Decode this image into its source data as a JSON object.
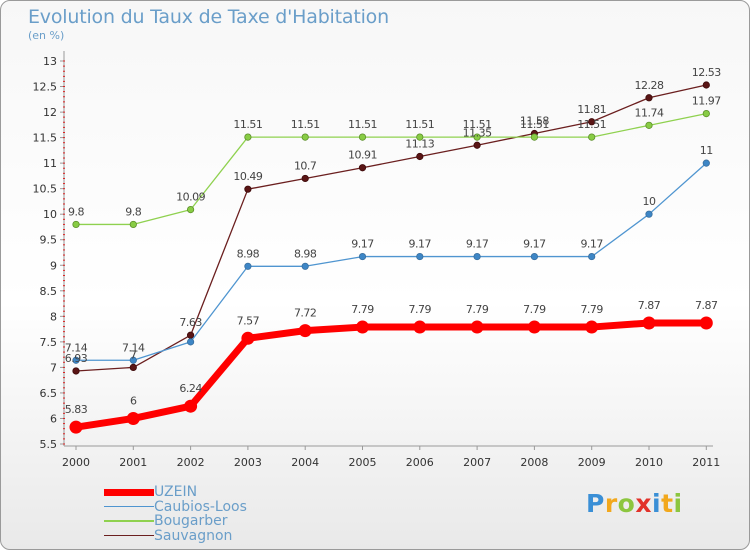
{
  "chart_data": {
    "type": "line",
    "title": "Evolution du Taux de Taxe d'Habitation",
    "ylabel": "(en %)",
    "xlabel": "",
    "ylim": [
      5.5,
      13
    ],
    "yticks": [
      "5.5",
      "6",
      "6.5",
      "7",
      "7.5",
      "8",
      "8.5",
      "9",
      "9.5",
      "10",
      "10.5",
      "11",
      "11.5",
      "12",
      "12.5",
      "13"
    ],
    "x": [
      "2000",
      "2001",
      "2002",
      "2003",
      "2004",
      "2005",
      "2006",
      "2007",
      "2008",
      "2009",
      "2010",
      "2011"
    ],
    "series": [
      {
        "name": "UZEIN",
        "color": "#ff0000",
        "values": [
          5.83,
          6,
          6.24,
          7.57,
          7.72,
          7.79,
          7.79,
          7.79,
          7.79,
          7.79,
          7.87,
          7.87
        ]
      },
      {
        "name": "Caubios-Loos",
        "color": "#4f95d0",
        "values": [
          7.14,
          7.14,
          7.5,
          8.98,
          8.98,
          9.17,
          9.17,
          9.17,
          9.17,
          9.17,
          10,
          11
        ]
      },
      {
        "name": "Bougarber",
        "color": "#8fd14f",
        "values": [
          9.8,
          9.8,
          10.09,
          11.51,
          11.51,
          11.51,
          11.51,
          11.51,
          11.51,
          11.51,
          11.74,
          11.97
        ]
      },
      {
        "name": "Sauvagnon",
        "color": "#6b1f1f",
        "values": [
          6.93,
          7,
          7.63,
          10.49,
          10.7,
          10.91,
          11.13,
          11.35,
          11.58,
          11.81,
          12.28,
          12.53
        ]
      }
    ],
    "data_labels": {
      "UZEIN": [
        "5.83",
        "6",
        "6.24",
        "7.57",
        "7.72",
        "7.79",
        "7.79",
        "7.79",
        "7.79",
        "7.79",
        "7.87",
        "7.87"
      ],
      "Caubios-Loos": [
        "7.14",
        "7.14",
        "",
        "8.98",
        "8.98",
        "9.17",
        "9.17",
        "9.17",
        "9.17",
        "9.17",
        "10",
        "11"
      ],
      "Bougarber": [
        "9.8",
        "9.8",
        "10.09",
        "11.51",
        "11.51",
        "11.51",
        "11.51",
        "11.51",
        "11.51",
        "11.51",
        "11.74",
        "11.97"
      ],
      "Sauvagnon": [
        "6.93",
        "7",
        "7.63",
        "10.49",
        "10.7",
        "10.91",
        "11.13",
        "11.35",
        "11.58",
        "11.81",
        "12.28",
        "12.53"
      ]
    },
    "grid": false,
    "legend_position": "bottom-left"
  },
  "legend": [
    "UZEIN",
    "Caubios-Loos",
    "Bougarber",
    "Sauvagnon"
  ],
  "logo": {
    "letters": [
      "P",
      "r",
      "o",
      "x",
      "i",
      "t",
      "i"
    ],
    "colors": [
      "#3a8fd6",
      "#f2a81d",
      "#8cc63f",
      "#e2322a",
      "#3a8fd6",
      "#f2a81d",
      "#8cc63f"
    ]
  }
}
